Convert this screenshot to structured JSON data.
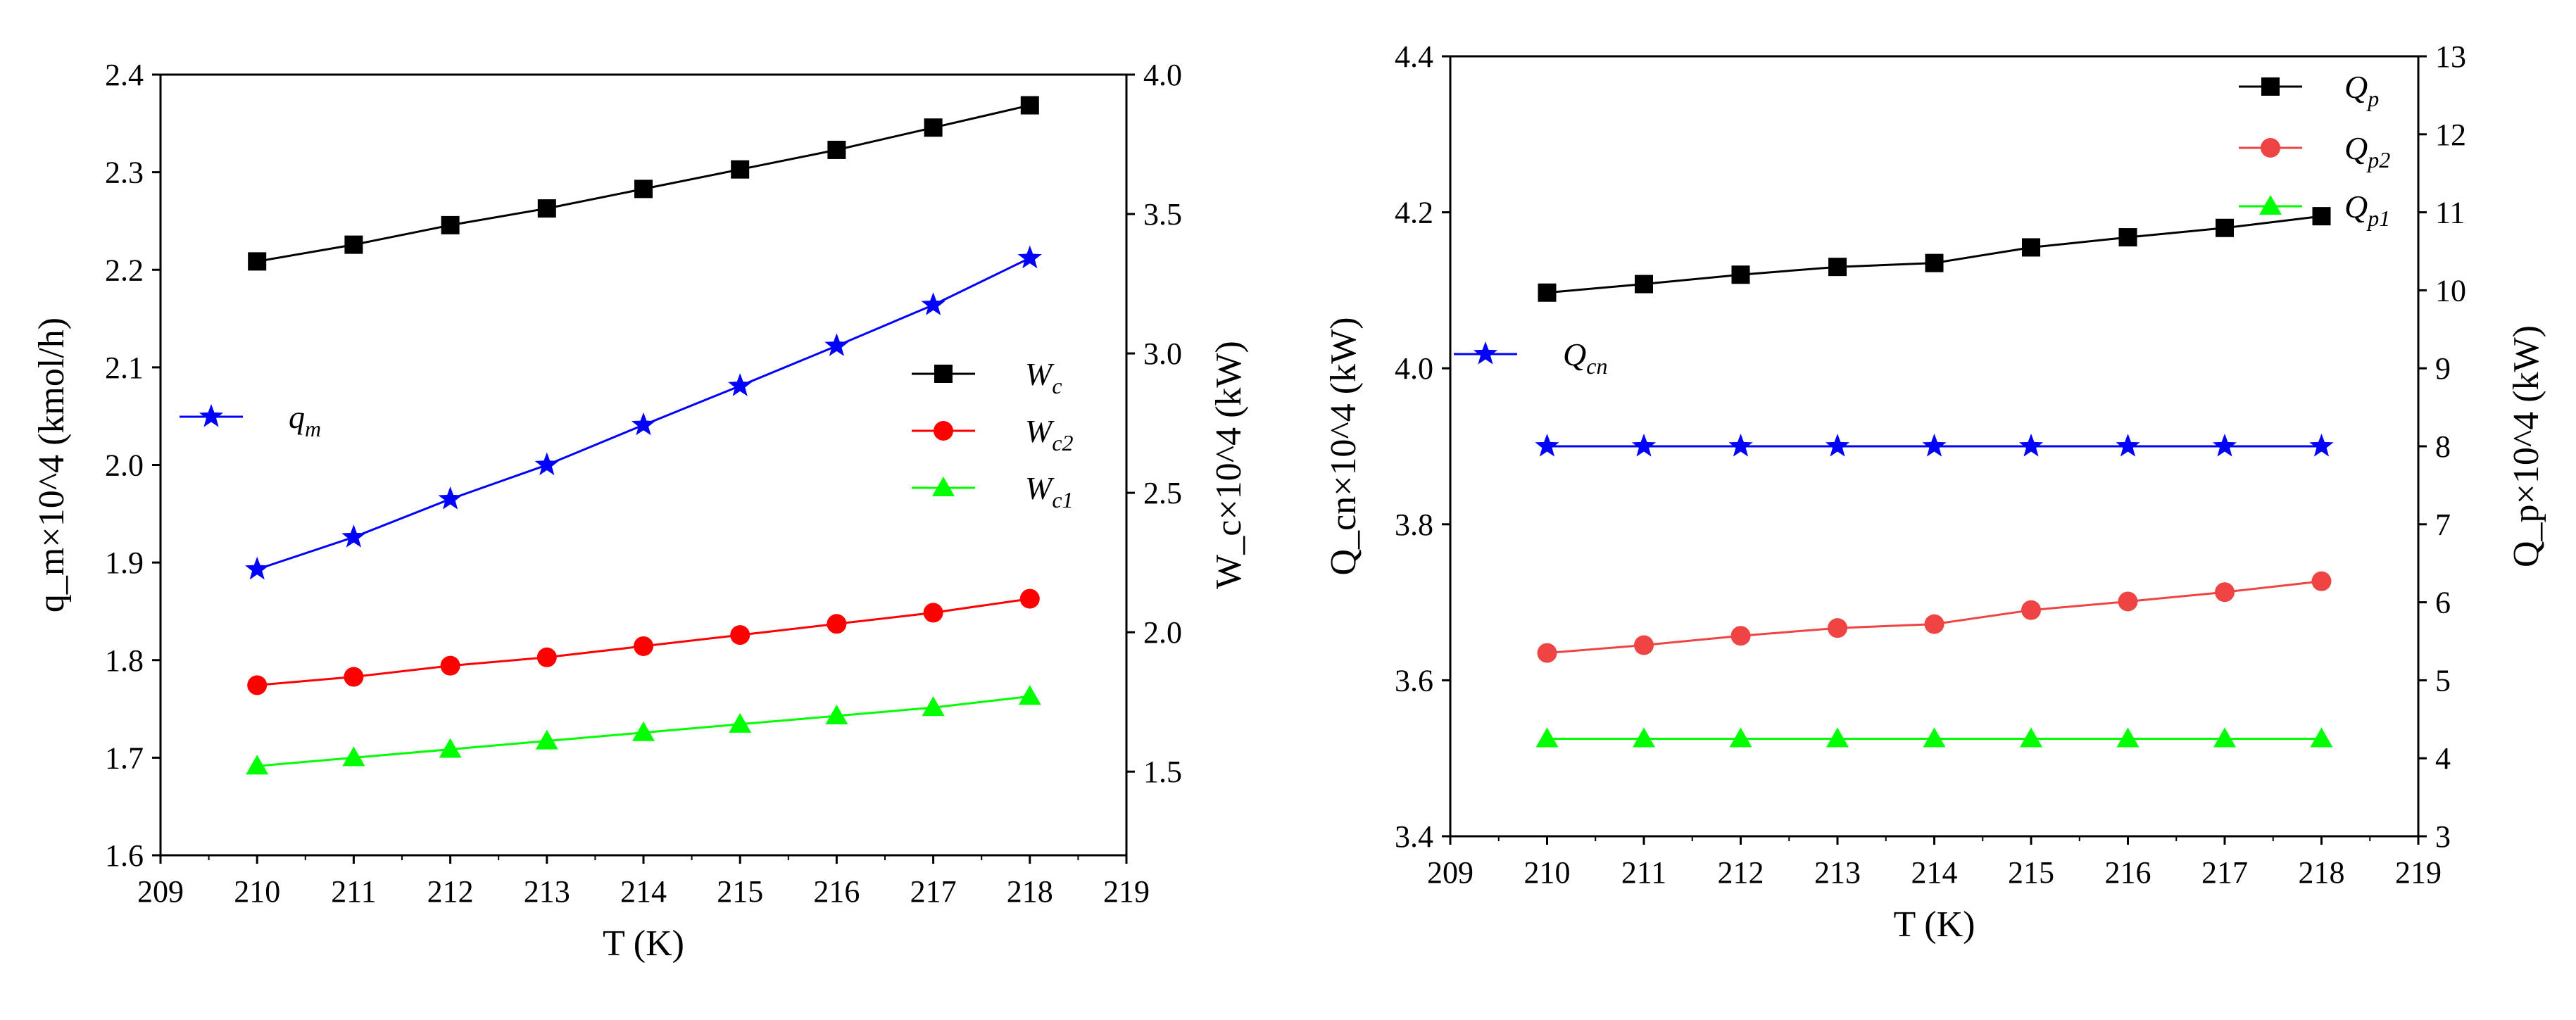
{
  "chart_data": [
    {
      "type": "line",
      "title": "",
      "x": [
        210,
        211,
        212,
        213,
        214,
        215,
        216,
        217,
        218
      ],
      "xlabel": "T (K)",
      "xlim": [
        209,
        219
      ],
      "xticks": [
        "209",
        "210",
        "211",
        "212",
        "213",
        "214",
        "215",
        "216",
        "217",
        "218",
        "219"
      ],
      "left_axis": {
        "label": "q_m×10^4 (kmol/h)",
        "ylim": [
          1.6,
          2.4
        ],
        "ticks": [
          "1.6",
          "1.7",
          "1.8",
          "1.9",
          "2.0",
          "2.1",
          "2.2",
          "2.3",
          "2.4"
        ]
      },
      "right_axis": {
        "label": "W_c×10^4 (kW)",
        "ylim": [
          1.2,
          4.0
        ],
        "ticks": [
          "1.5",
          "2.0",
          "2.5",
          "3.0",
          "3.5",
          "4.0"
        ]
      },
      "series": [
        {
          "name": "W_c",
          "legend_main": "W",
          "legend_sub": "c",
          "axis": "right",
          "color": "#000000",
          "marker": "square",
          "values": [
            3.33,
            3.39,
            3.46,
            3.52,
            3.59,
            3.66,
            3.73,
            3.81,
            3.89
          ]
        },
        {
          "name": "W_c2",
          "legend_main": "W",
          "legend_sub": "c2",
          "axis": "right",
          "color": "#ff0000",
          "marker": "circle",
          "values": [
            1.81,
            1.84,
            1.88,
            1.91,
            1.95,
            1.99,
            2.03,
            2.07,
            2.12
          ]
        },
        {
          "name": "W_c1",
          "legend_main": "W",
          "legend_sub": "c1",
          "axis": "right",
          "color": "#00ff00",
          "marker": "triangle",
          "values": [
            1.52,
            1.55,
            1.58,
            1.61,
            1.64,
            1.67,
            1.7,
            1.73,
            1.77
          ]
        },
        {
          "name": "q_m",
          "legend_main": "q",
          "legend_sub": "m",
          "axis": "left",
          "color": "#0000ff",
          "marker": "star",
          "values": [
            1.893,
            1.926,
            1.965,
            2.0,
            2.041,
            2.081,
            2.122,
            2.164,
            2.212
          ]
        }
      ]
    },
    {
      "type": "line",
      "title": "",
      "x": [
        210,
        211,
        212,
        213,
        214,
        215,
        216,
        217,
        218
      ],
      "xlabel": "T (K)",
      "xlim": [
        209,
        219
      ],
      "xticks": [
        "209",
        "210",
        "211",
        "212",
        "213",
        "214",
        "215",
        "216",
        "217",
        "218",
        "219"
      ],
      "left_axis": {
        "label": "Q_cn×10^4 (kW)",
        "ylim": [
          3.4,
          4.4
        ],
        "ticks": [
          "3.4",
          "3.6",
          "3.8",
          "4.0",
          "4.2",
          "4.4"
        ]
      },
      "right_axis": {
        "label": "Q_p×10^4 (kW)",
        "ylim": [
          3,
          13
        ],
        "ticks": [
          "3",
          "4",
          "5",
          "6",
          "7",
          "8",
          "9",
          "10",
          "11",
          "12",
          "13"
        ]
      },
      "series": [
        {
          "name": "Q_p",
          "legend_main": "Q",
          "legend_sub": "p",
          "axis": "right",
          "color": "#000000",
          "marker": "square",
          "values": [
            9.97,
            10.08,
            10.2,
            10.3,
            10.35,
            10.55,
            10.68,
            10.8,
            10.95
          ]
        },
        {
          "name": "Q_p2",
          "legend_main": "Q",
          "legend_sub": "p2",
          "axis": "right",
          "color": "#ee4444",
          "marker": "circle",
          "values": [
            5.35,
            5.45,
            5.57,
            5.67,
            5.72,
            5.9,
            6.01,
            6.13,
            6.27
          ]
        },
        {
          "name": "Q_p1",
          "legend_main": "Q",
          "legend_sub": "p1",
          "axis": "right",
          "color": "#00ff00",
          "marker": "triangle",
          "values": [
            4.25,
            4.25,
            4.25,
            4.25,
            4.25,
            4.25,
            4.25,
            4.25,
            4.25
          ]
        },
        {
          "name": "Q_cn",
          "legend_main": "Q",
          "legend_sub": "cn",
          "axis": "left",
          "color": "#0000ff",
          "marker": "star",
          "values": [
            3.9,
            3.9,
            3.9,
            3.9,
            3.9,
            3.9,
            3.9,
            3.9,
            3.9
          ]
        }
      ]
    }
  ]
}
